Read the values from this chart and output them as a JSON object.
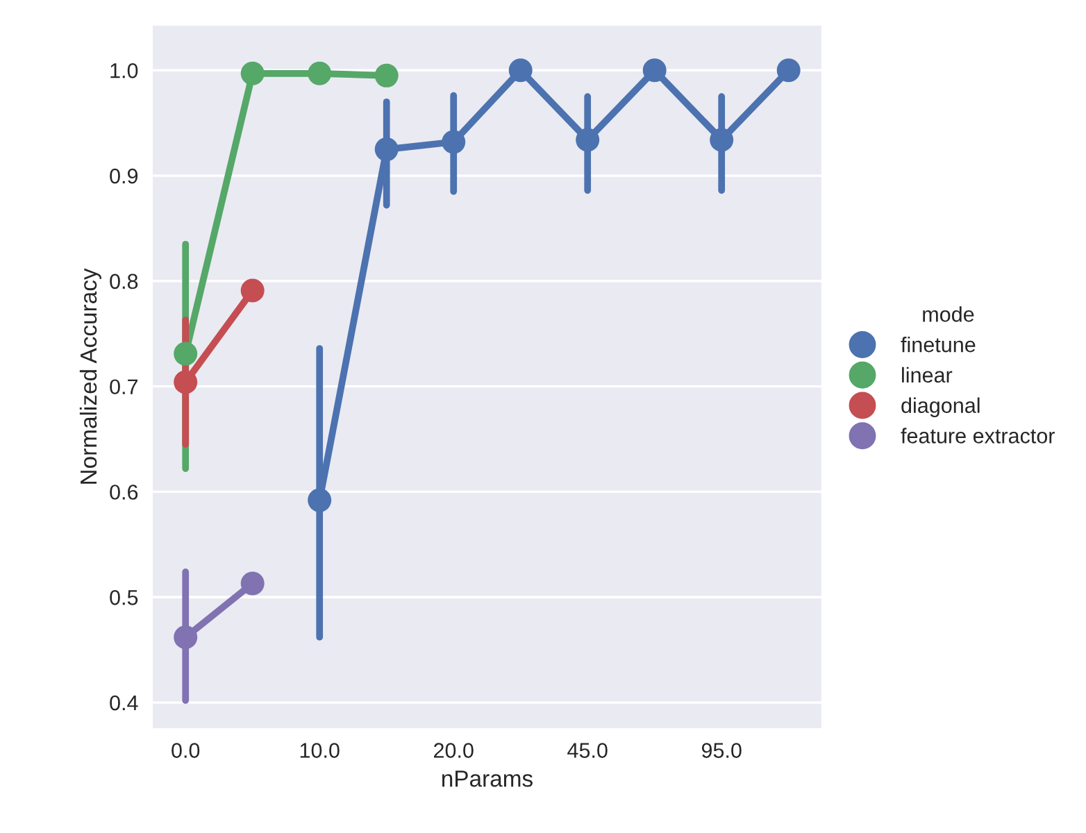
{
  "chart_data": {
    "type": "line",
    "xlabel": "nParams",
    "ylabel": "Normalized Accuracy",
    "legend_title": "mode",
    "legend": "right",
    "grid": "y",
    "marker": "circle",
    "line_style": "solid",
    "categories": [
      "0.0",
      null,
      "10.0",
      null,
      "20.0",
      null,
      "45.0",
      null,
      "95.0",
      null
    ],
    "ylim": [
      0.375,
      1.043
    ],
    "yticks": [
      0.4,
      0.5,
      0.6,
      0.7,
      0.8,
      0.9,
      {
        "value": 1.0,
        "label": "1.0"
      }
    ],
    "series": [
      {
        "name": "finetune",
        "color": "#4c72b0",
        "values": [
          null,
          null,
          0.592,
          0.925,
          0.932,
          1.0,
          0.934,
          1.0,
          0.934,
          1.0
        ],
        "errors": [
          null,
          null,
          [
            0.462,
            0.736
          ],
          [
            0.872,
            0.97
          ],
          [
            0.885,
            0.976
          ],
          null,
          [
            0.886,
            0.975
          ],
          null,
          [
            0.886,
            0.975
          ],
          null
        ]
      },
      {
        "name": "linear",
        "color": "#55a868",
        "values": [
          0.731,
          0.997,
          0.997,
          0.995,
          null,
          null,
          null,
          null,
          null,
          null
        ],
        "errors": [
          [
            0.622,
            0.835
          ],
          null,
          null,
          null,
          null,
          null,
          null,
          null,
          null,
          null
        ]
      },
      {
        "name": "diagonal",
        "color": "#c44e52",
        "values": [
          0.704,
          0.791,
          null,
          null,
          null,
          null,
          null,
          null,
          null,
          null
        ],
        "errors": [
          [
            0.645,
            0.763
          ],
          null,
          null,
          null,
          null,
          null,
          null,
          null,
          null,
          null
        ]
      },
      {
        "name": "feature extractor",
        "color": "#8172b2",
        "values": [
          0.462,
          0.513,
          null,
          null,
          null,
          null,
          null,
          null,
          null,
          null
        ],
        "errors": [
          [
            0.402,
            0.524
          ],
          null,
          null,
          null,
          null,
          null,
          null,
          null,
          null,
          null
        ]
      }
    ]
  }
}
